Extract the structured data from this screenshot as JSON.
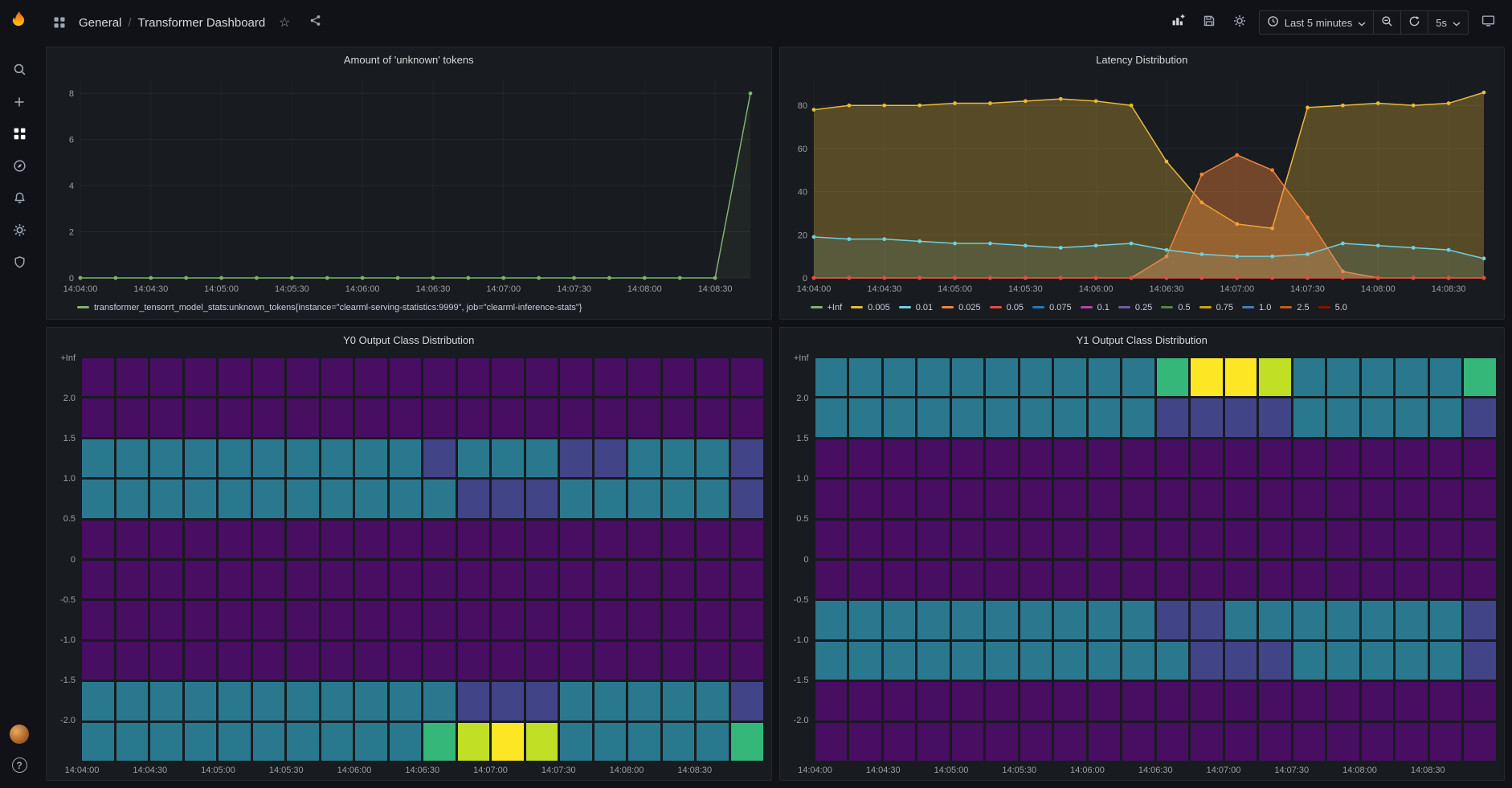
{
  "topbar": {
    "breadcrumb": {
      "folder": "General",
      "separator": "/",
      "title": "Transformer Dashboard"
    },
    "time_range_label": "Last 5 minutes",
    "refresh_interval_label": "5s"
  },
  "icons": {
    "star": "☆",
    "help": "?"
  },
  "chart_data": [
    {
      "type": "line",
      "title": "Amount of 'unknown' tokens",
      "ylim": [
        0,
        8.6
      ],
      "y_ticks": [
        0,
        2,
        4,
        6,
        8
      ],
      "x_ticks": [
        "14:04:00",
        "14:04:30",
        "14:05:00",
        "14:05:30",
        "14:06:00",
        "14:06:30",
        "14:07:00",
        "14:07:30",
        "14:08:00",
        "14:08:30"
      ],
      "points_per_tick": 2,
      "series": [
        {
          "name": "unknown_tokens",
          "color": "#7EB26D",
          "fill": 0.08,
          "values": [
            0,
            0,
            0,
            0,
            0,
            0,
            0,
            0,
            0,
            0,
            0,
            0,
            0,
            0,
            0,
            0,
            0,
            0,
            0,
            8
          ]
        }
      ],
      "legend": [
        {
          "label": "transformer_tensorrt_model_stats:unknown_tokens{instance=\"clearml-serving-statistics:9999\", job=\"clearml-inference-stats\"}",
          "color": "#7EB26D"
        }
      ]
    },
    {
      "type": "line",
      "title": "Latency Distribution",
      "ylim": [
        0,
        92
      ],
      "y_ticks": [
        0,
        20,
        40,
        60,
        80
      ],
      "x_ticks": [
        "14:04:00",
        "14:04:30",
        "14:05:00",
        "14:05:30",
        "14:06:00",
        "14:06:30",
        "14:07:00",
        "14:07:30",
        "14:08:00",
        "14:08:30"
      ],
      "points_per_tick": 2,
      "series": [
        {
          "name": "0.005",
          "color": "#EAB839",
          "fill": 0.3,
          "values": [
            78,
            80,
            80,
            80,
            81,
            81,
            82,
            83,
            82,
            80,
            54,
            35,
            25,
            23,
            79,
            80,
            81,
            80,
            81,
            86
          ]
        },
        {
          "name": "0.025",
          "color": "#EF843C",
          "fill": 0.42,
          "values": [
            0,
            0,
            0,
            0,
            0,
            0,
            0,
            0,
            0,
            0,
            10,
            48,
            57,
            50,
            28,
            3,
            0,
            0,
            0,
            0
          ]
        },
        {
          "name": "0.01",
          "color": "#6ED0E0",
          "fill": 0.12,
          "values": [
            19,
            18,
            18,
            17,
            16,
            16,
            15,
            14,
            15,
            16,
            13,
            11,
            10,
            10,
            11,
            16,
            15,
            14,
            13,
            9
          ]
        },
        {
          "name": "0.05",
          "color": "#E24D42",
          "fill": 0,
          "values": [
            0,
            0,
            0,
            0,
            0,
            0,
            0,
            0,
            0,
            0,
            0,
            0,
            0,
            0,
            0,
            0,
            0,
            0,
            0,
            0
          ]
        }
      ],
      "legend": [
        {
          "label": "+Inf",
          "color": "#7EB26D"
        },
        {
          "label": "0.005",
          "color": "#EAB839"
        },
        {
          "label": "0.01",
          "color": "#6ED0E0"
        },
        {
          "label": "0.025",
          "color": "#EF843C"
        },
        {
          "label": "0.05",
          "color": "#E24D42"
        },
        {
          "label": "0.075",
          "color": "#1F78C1"
        },
        {
          "label": "0.1",
          "color": "#BA43A9"
        },
        {
          "label": "0.25",
          "color": "#705DA0"
        },
        {
          "label": "0.5",
          "color": "#508642"
        },
        {
          "label": "0.75",
          "color": "#CCA300"
        },
        {
          "label": "1.0",
          "color": "#447EBC"
        },
        {
          "label": "2.5",
          "color": "#C15C17"
        },
        {
          "label": "5.0",
          "color": "#890F02"
        }
      ]
    },
    {
      "type": "heatmap",
      "title": "Y0 Output Class Distribution",
      "y_labels": [
        "+Inf",
        "2.0",
        "1.5",
        "1.0",
        "0.5",
        "0",
        "-0.5",
        "-1.0",
        "-1.5",
        "-2.0"
      ],
      "x_ticks": [
        "14:04:00",
        "14:04:30",
        "14:05:00",
        "14:05:30",
        "14:06:00",
        "14:06:30",
        "14:07:00",
        "14:07:30",
        "14:08:00",
        "14:08:30"
      ],
      "palette": {
        "p": "#470e61",
        "t": "#2a788e",
        "b": "#414487",
        "g": "#35b779",
        "l": "#c0df25",
        "y": "#fde725"
      },
      "rows": [
        "pppppppppppppppppppp",
        "pppppppppppppppppppp",
        "ttttttttttbtttbbtttb",
        "tttttttttttbbbtttttb",
        "pppppppppppppppppppp",
        "pppppppppppppppppppp",
        "pppppppppppppppppppp",
        "pppppppppppppppppppp",
        "tttttttttttbbbtttttb",
        "ttttttttttglyltttttg"
      ]
    },
    {
      "type": "heatmap",
      "title": "Y1 Output Class Distribution",
      "y_labels": [
        "+Inf",
        "2.0",
        "1.5",
        "1.0",
        "0.5",
        "0",
        "-0.5",
        "-1.0",
        "-1.5",
        "-2.0"
      ],
      "x_ticks": [
        "14:04:00",
        "14:04:30",
        "14:05:00",
        "14:05:30",
        "14:06:00",
        "14:06:30",
        "14:07:00",
        "14:07:30",
        "14:08:00",
        "14:08:30"
      ],
      "palette": {
        "p": "#470e61",
        "t": "#2a788e",
        "b": "#414487",
        "g": "#35b779",
        "l": "#c0df25",
        "y": "#fde725"
      },
      "rows": [
        "ttttttttttgyyltttttg",
        "ttttttttttbbbbtttttb",
        "pppppppppppppppppppp",
        "pppppppppppppppppppp",
        "pppppppppppppppppppp",
        "pppppppppppppppppppp",
        "ttttttttttbbtttttttb",
        "tttttttttttbbbtttttb",
        "pppppppppppppppppppp",
        "pppppppppppppppppppp"
      ]
    }
  ]
}
